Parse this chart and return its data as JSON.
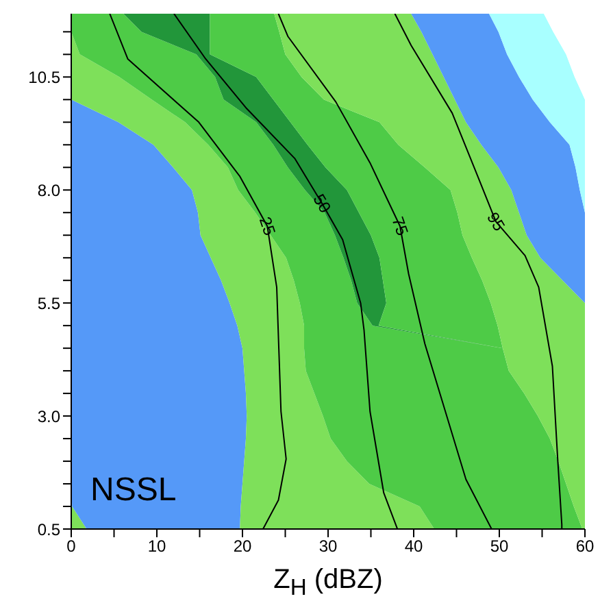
{
  "chart_data": {
    "type": "line",
    "orientation": "horizontal",
    "stacked": true,
    "xlabel": "Z$_{H}$ (dBZ)",
    "annotations": [
      "NSSL"
    ],
    "xlim": [
      0,
      60
    ],
    "ylim": [
      0.5,
      11.9
    ],
    "xticks": [
      0,
      {
        "value": 5,
        "label": null
      },
      10,
      {
        "value": 15,
        "label": null
      },
      20,
      {
        "value": 25,
        "label": null
      },
      30,
      {
        "value": 35,
        "label": null
      },
      40,
      {
        "value": 45,
        "label": null
      },
      50,
      {
        "value": 55,
        "label": null
      },
      60
    ],
    "yticks": [
      0.5,
      {
        "value": 1,
        "label": null
      },
      {
        "value": 1.5,
        "label": null
      },
      {
        "value": 2,
        "label": null
      },
      {
        "value": 2.5,
        "label": null
      },
      {
        "value": 3,
        "label": "3.0"
      },
      {
        "value": 3.5,
        "label": null
      },
      {
        "value": 4,
        "label": null
      },
      {
        "value": 4.5,
        "label": null
      },
      {
        "value": 5,
        "label": null
      },
      5.5,
      {
        "value": 6,
        "label": null
      },
      {
        "value": 6.5,
        "label": null
      },
      {
        "value": 7,
        "label": null
      },
      {
        "value": 7.5,
        "label": null
      },
      {
        "value": 8,
        "label": "8.0"
      },
      {
        "value": 8.5,
        "label": null
      },
      {
        "value": 9,
        "label": null
      },
      {
        "value": 9.5,
        "label": null
      },
      {
        "value": 10,
        "label": null
      },
      10.5,
      {
        "value": 11,
        "label": null
      },
      {
        "value": 11.5,
        "label": null
      }
    ],
    "x": [
      0.5,
      1,
      1.5,
      2,
      2.5,
      3,
      3.5,
      4,
      4.5,
      5,
      5.5,
      6,
      6.5,
      7,
      7.5,
      8,
      8.5,
      9,
      9.5,
      10,
      10.5,
      11,
      11.5,
      11.9
    ],
    "series": [
      {
        "type": "area",
        "color": "#7ee05a",
        "values": [
          1.8,
          0.1,
          0,
          0,
          0,
          0,
          0,
          0,
          0,
          0,
          0,
          0,
          0,
          0,
          0,
          0,
          0,
          0,
          0,
          0,
          0,
          0,
          0,
          0
        ]
      },
      {
        "type": "area",
        "color": "#5599f8",
        "values": [
          17.9,
          19.7,
          20,
          20.2,
          20.4,
          20.5,
          20.4,
          20.2,
          20,
          19.4,
          18.5,
          17.5,
          16.3,
          15.1,
          14.8,
          14.1,
          11.9,
          9.6,
          5.5,
          0,
          0,
          0,
          0,
          0
        ]
      },
      {
        "type": "area",
        "color": "#7ee05a",
        "values": [
          22.7,
          20.9,
          14.8,
          12,
          9.9,
          8.9,
          8,
          7.2,
          7.2,
          7.8,
          8.2,
          8.5,
          8.8,
          8.2,
          6.7,
          5.4,
          6.4,
          6.4,
          7.8,
          9.4,
          5.6,
          1,
          0,
          0
        ]
      },
      {
        "type": "area",
        "color": "#4ecb47",
        "values": [
          17.3,
          18,
          23,
          24.7,
          25.6,
          25.1,
          24.5,
          23.7,
          23.2,
          8,
          6.7,
          6.7,
          6.7,
          7.5,
          8.1,
          7.8,
          7,
          7.6,
          8.3,
          8.4,
          11.2,
          13.6,
          8.2,
          6.1
        ]
      },
      {
        "type": "area",
        "color": "#22963a",
        "values": [
          0,
          0,
          0,
          0,
          0,
          0,
          0,
          0,
          0,
          0.7,
          3.4,
          3.7,
          4.2,
          4.2,
          4,
          4.9,
          4.4,
          4,
          4,
          5.8,
          4.8,
          1.6,
          8,
          10.1
        ]
      },
      {
        "type": "area",
        "color": "#4ecb47",
        "values": [
          0,
          0,
          0,
          0,
          0,
          0,
          0,
          0,
          0,
          13.9,
          12.2,
          11.6,
          10.8,
          10.7,
          11.5,
          12.1,
          11.6,
          10.6,
          10.4,
          5.9,
          5.3,
          8.8,
          8.1,
          7.5
        ]
      },
      {
        "type": "area",
        "color": "#7ee05a",
        "values": [
          0.3,
          1.3,
          2.2,
          3.1,
          4.1,
          5.5,
          7.1,
          8.9,
          9.6,
          10.2,
          11,
          9.4,
          8,
          7.5,
          7.2,
          7.1,
          8.6,
          9.7,
          10.1,
          15.3,
          16.6,
          17.2,
          16.6,
          16
        ]
      },
      {
        "type": "area",
        "color": "#5599f8",
        "values": [
          0,
          0,
          0,
          0,
          0,
          0,
          0,
          0,
          0,
          0,
          0,
          2.6,
          5.2,
          6.8,
          7.7,
          8,
          9,
          10.3,
          9.8,
          9.1,
          8.8,
          8.7,
          9,
          9.1
        ]
      },
      {
        "type": "area",
        "color": "#a8ffff",
        "values": [
          0,
          0,
          0,
          0,
          0,
          0,
          0,
          0,
          0,
          0,
          0,
          0,
          0,
          0,
          0,
          0.6,
          1.1,
          1.8,
          4.1,
          6.1,
          6.5,
          6.9,
          6.4,
          6.4
        ]
      },
      {
        "type": "area",
        "color": "#ffffff",
        "values": [
          0,
          0,
          0,
          0,
          0,
          0,
          0,
          0,
          0,
          0,
          0,
          0,
          0,
          0,
          0,
          0,
          0,
          0,
          0,
          0,
          1.2,
          2.2,
          3.7,
          4.8
        ]
      },
      {
        "name": "25",
        "color": "#000000",
        "x": [
          11.9,
          10.9,
          9.5,
          8.3,
          7.2,
          5.85,
          3.1,
          2.05,
          1.14,
          0.5
        ],
        "values": [
          4.5,
          6.6,
          14.9,
          19.7,
          22.9,
          24,
          24.5,
          25.1,
          24.2,
          22.4
        ]
      },
      {
        "name": "50",
        "color": "#000000",
        "x": [
          11.9,
          10.9,
          9.8,
          8.7,
          7.7,
          6.9,
          5.5,
          4.9,
          3.1,
          1.3,
          0.5
        ],
        "values": [
          12,
          15.7,
          20.5,
          26.1,
          29.3,
          31.7,
          33.8,
          34.2,
          34.9,
          36.5,
          38.1
        ]
      },
      {
        "name": "75",
        "color": "#000000",
        "x": [
          11.9,
          11.4,
          9.95,
          8.6,
          7.2,
          6.15,
          4.6,
          3.1,
          1.6,
          0.5
        ],
        "values": [
          24.2,
          25.3,
          30.9,
          34.9,
          38.4,
          39.4,
          41.3,
          43.7,
          46.1,
          49.1
        ]
      },
      {
        "name": "95",
        "color": "#000000",
        "x": [
          11.9,
          11.2,
          9.7,
          8.2,
          7.3,
          6.55,
          5.85,
          4.1,
          2.1,
          0.6,
          0.5
        ],
        "values": [
          37.8,
          39.7,
          44.5,
          47.7,
          49.6,
          53,
          54.6,
          56.2,
          56.8,
          57.3,
          57.3
        ]
      }
    ]
  }
}
